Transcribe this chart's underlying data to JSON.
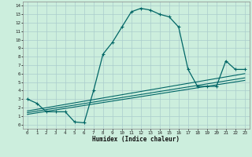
{
  "title": "",
  "xlabel": "Humidex (Indice chaleur)",
  "bg_color": "#cceedd",
  "grid_color": "#aacccc",
  "line_color": "#006666",
  "xlim": [
    -0.5,
    23.5
  ],
  "ylim": [
    -0.5,
    14.5
  ],
  "xticks": [
    0,
    1,
    2,
    3,
    4,
    5,
    6,
    7,
    8,
    9,
    10,
    11,
    12,
    13,
    14,
    15,
    16,
    17,
    18,
    19,
    20,
    21,
    22,
    23
  ],
  "yticks": [
    0,
    1,
    2,
    3,
    4,
    5,
    6,
    7,
    8,
    9,
    10,
    11,
    12,
    13,
    14
  ],
  "main_x": [
    0,
    1,
    2,
    3,
    4,
    5,
    6,
    7,
    8,
    9,
    10,
    11,
    12,
    13,
    14,
    15,
    16,
    17,
    18,
    19,
    20,
    21,
    22,
    23
  ],
  "main_y": [
    3.0,
    2.5,
    1.5,
    1.5,
    1.5,
    0.3,
    0.2,
    4.0,
    8.3,
    9.7,
    11.5,
    13.3,
    13.7,
    13.5,
    13.0,
    12.7,
    11.5,
    6.5,
    4.5,
    4.5,
    4.5,
    7.5,
    6.5,
    6.5
  ],
  "line1_x": [
    0,
    23
  ],
  "line1_y": [
    1.2,
    5.2
  ],
  "line2_x": [
    0,
    23
  ],
  "line2_y": [
    1.4,
    5.5
  ],
  "line3_x": [
    0,
    23
  ],
  "line3_y": [
    1.6,
    6.0
  ]
}
